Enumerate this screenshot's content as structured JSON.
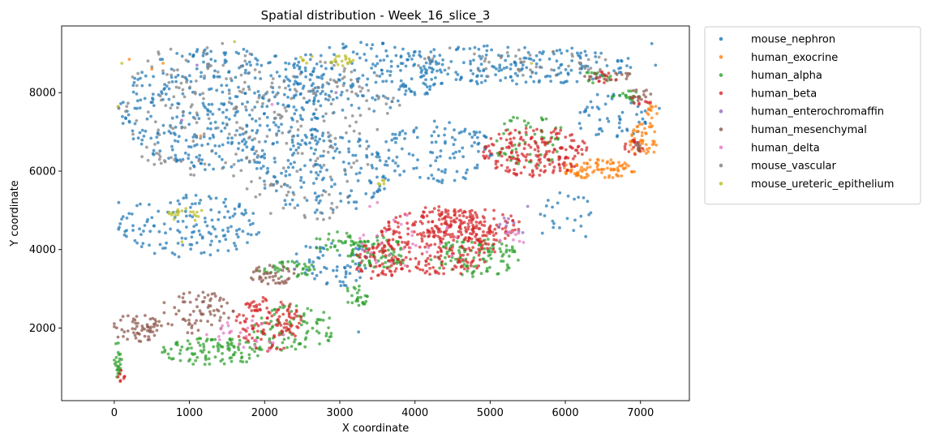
{
  "chart_data": {
    "type": "scatter",
    "title": "Spatial distribution - Week_16_slice_3",
    "xlabel": "X coordinate",
    "ylabel": "Y coordinate",
    "xlim": [
      -700,
      7650
    ],
    "ylim": [
      150,
      9700
    ],
    "xticks": [
      0,
      1000,
      2000,
      3000,
      4000,
      5000,
      6000,
      7000
    ],
    "yticks": [
      2000,
      4000,
      6000,
      8000
    ],
    "grid": false,
    "legend_position": "outside-right",
    "series": [
      {
        "name": "mouse_nephron",
        "color": "#1f77b4",
        "clusters": [
          {
            "cx": 1500,
            "cy": 7600,
            "rx": 1450,
            "ry": 1600,
            "n": 420
          },
          {
            "cx": 3300,
            "cy": 8400,
            "rx": 1100,
            "ry": 900,
            "n": 180
          },
          {
            "cx": 5200,
            "cy": 8700,
            "rx": 1800,
            "ry": 500,
            "n": 200
          },
          {
            "cx": 2800,
            "cy": 6000,
            "rx": 900,
            "ry": 1100,
            "n": 160
          },
          {
            "cx": 4300,
            "cy": 6500,
            "rx": 800,
            "ry": 800,
            "n": 110
          },
          {
            "cx": 1000,
            "cy": 4600,
            "rx": 950,
            "ry": 800,
            "n": 150
          },
          {
            "cx": 2900,
            "cy": 3700,
            "rx": 500,
            "ry": 700,
            "n": 60
          },
          {
            "cx": 6600,
            "cy": 7400,
            "rx": 500,
            "ry": 600,
            "n": 50
          },
          {
            "cx": 6000,
            "cy": 4800,
            "rx": 400,
            "ry": 700,
            "n": 25
          }
        ],
        "points": [
          [
            7150,
            9250
          ],
          [
            7250,
            7600
          ],
          [
            7200,
            8700
          ],
          [
            60,
            5200
          ],
          [
            3250,
            1900
          ]
        ]
      },
      {
        "name": "human_exocrine",
        "color": "#ff7f0e",
        "clusters": [
          {
            "cx": 6450,
            "cy": 6050,
            "rx": 500,
            "ry": 250,
            "n": 90
          },
          {
            "cx": 7050,
            "cy": 6800,
            "rx": 200,
            "ry": 450,
            "n": 50
          },
          {
            "cx": 7150,
            "cy": 7550,
            "rx": 80,
            "ry": 200,
            "n": 12
          }
        ],
        "points": [
          [
            650,
            8750
          ],
          [
            500,
            8600
          ],
          [
            200,
            8850
          ],
          [
            1150,
            6900
          ]
        ]
      },
      {
        "name": "human_alpha",
        "color": "#2ca02c",
        "clusters": [
          {
            "cx": 1300,
            "cy": 1400,
            "rx": 700,
            "ry": 350,
            "n": 110
          },
          {
            "cx": 2400,
            "cy": 2000,
            "rx": 550,
            "ry": 600,
            "n": 90
          },
          {
            "cx": 2300,
            "cy": 3500,
            "rx": 400,
            "ry": 200,
            "n": 40
          },
          {
            "cx": 3500,
            "cy": 3900,
            "rx": 400,
            "ry": 450,
            "n": 80
          },
          {
            "cx": 4800,
            "cy": 3800,
            "rx": 600,
            "ry": 500,
            "n": 110
          },
          {
            "cx": 3000,
            "cy": 4200,
            "rx": 400,
            "ry": 250,
            "n": 35
          },
          {
            "cx": 5500,
            "cy": 6800,
            "rx": 500,
            "ry": 700,
            "n": 60
          },
          {
            "cx": 6800,
            "cy": 7900,
            "rx": 250,
            "ry": 150,
            "n": 18
          },
          {
            "cx": 6400,
            "cy": 8400,
            "rx": 300,
            "ry": 150,
            "n": 15
          },
          {
            "cx": 50,
            "cy": 1200,
            "rx": 50,
            "ry": 500,
            "n": 25
          },
          {
            "cx": 3200,
            "cy": 2800,
            "rx": 200,
            "ry": 300,
            "n": 25
          }
        ],
        "points": []
      },
      {
        "name": "human_beta",
        "color": "#d62728",
        "clusters": [
          {
            "cx": 4300,
            "cy": 4200,
            "rx": 800,
            "ry": 900,
            "n": 280
          },
          {
            "cx": 4800,
            "cy": 4600,
            "rx": 600,
            "ry": 500,
            "n": 110
          },
          {
            "cx": 5600,
            "cy": 6500,
            "rx": 700,
            "ry": 650,
            "n": 190
          },
          {
            "cx": 2050,
            "cy": 2100,
            "rx": 450,
            "ry": 700,
            "n": 120
          },
          {
            "cx": 3500,
            "cy": 3700,
            "rx": 300,
            "ry": 500,
            "n": 60
          },
          {
            "cx": 6500,
            "cy": 8400,
            "rx": 200,
            "ry": 150,
            "n": 14
          },
          {
            "cx": 6900,
            "cy": 6600,
            "rx": 150,
            "ry": 200,
            "n": 14
          },
          {
            "cx": 7000,
            "cy": 7800,
            "rx": 150,
            "ry": 150,
            "n": 10
          },
          {
            "cx": 80,
            "cy": 800,
            "rx": 60,
            "ry": 200,
            "n": 8
          }
        ],
        "points": []
      },
      {
        "name": "human_enterochromaffin",
        "color": "#9467bd",
        "clusters": [
          {
            "cx": 5300,
            "cy": 4600,
            "rx": 200,
            "ry": 300,
            "n": 10
          }
        ],
        "points": [
          [
            2950,
            8000
          ],
          [
            1100,
            8700
          ],
          [
            5500,
            5100
          ],
          [
            3300,
            4000
          ],
          [
            2400,
            3500
          ]
        ]
      },
      {
        "name": "human_mesenchymal",
        "color": "#8c564b",
        "clusters": [
          {
            "cx": 300,
            "cy": 2000,
            "rx": 350,
            "ry": 350,
            "n": 60
          },
          {
            "cx": 1100,
            "cy": 2400,
            "rx": 500,
            "ry": 550,
            "n": 70
          },
          {
            "cx": 2100,
            "cy": 3350,
            "rx": 300,
            "ry": 250,
            "n": 40
          },
          {
            "cx": 6600,
            "cy": 8400,
            "rx": 350,
            "ry": 120,
            "n": 20
          },
          {
            "cx": 7000,
            "cy": 7900,
            "rx": 150,
            "ry": 200,
            "n": 14
          },
          {
            "cx": 6950,
            "cy": 6600,
            "rx": 100,
            "ry": 150,
            "n": 8
          }
        ],
        "points": []
      },
      {
        "name": "human_delta",
        "color": "#e377c2",
        "clusters": [
          {
            "cx": 1800,
            "cy": 1800,
            "rx": 600,
            "ry": 400,
            "n": 25
          },
          {
            "cx": 3900,
            "cy": 4200,
            "rx": 700,
            "ry": 700,
            "n": 30
          },
          {
            "cx": 5300,
            "cy": 4300,
            "rx": 200,
            "ry": 200,
            "n": 10
          }
        ],
        "points": [
          [
            3400,
            5100
          ],
          [
            3500,
            5200
          ],
          [
            2100,
            7700
          ],
          [
            900,
            7300
          ]
        ]
      },
      {
        "name": "mouse_vascular",
        "color": "#7f7f7f",
        "clusters": [
          {
            "cx": 1200,
            "cy": 7500,
            "rx": 1200,
            "ry": 1800,
            "n": 160
          },
          {
            "cx": 3000,
            "cy": 7500,
            "rx": 900,
            "ry": 1500,
            "n": 90
          },
          {
            "cx": 2500,
            "cy": 5500,
            "rx": 800,
            "ry": 800,
            "n": 40
          },
          {
            "cx": 5200,
            "cy": 8800,
            "rx": 1500,
            "ry": 400,
            "n": 50
          }
        ],
        "points": []
      },
      {
        "name": "mouse_ureteric_epithelium",
        "color": "#bcbd22",
        "clusters": [
          {
            "cx": 950,
            "cy": 4900,
            "rx": 250,
            "ry": 200,
            "n": 20
          },
          {
            "cx": 3000,
            "cy": 8800,
            "rx": 220,
            "ry": 150,
            "n": 18
          },
          {
            "cx": 2550,
            "cy": 8850,
            "rx": 150,
            "ry": 100,
            "n": 6
          },
          {
            "cx": 3550,
            "cy": 5700,
            "rx": 100,
            "ry": 100,
            "n": 5
          }
        ],
        "points": [
          [
            50,
            7650
          ],
          [
            900,
            4200
          ],
          [
            1600,
            9300
          ],
          [
            5550,
            8750
          ],
          [
            100,
            8750
          ]
        ]
      }
    ]
  }
}
